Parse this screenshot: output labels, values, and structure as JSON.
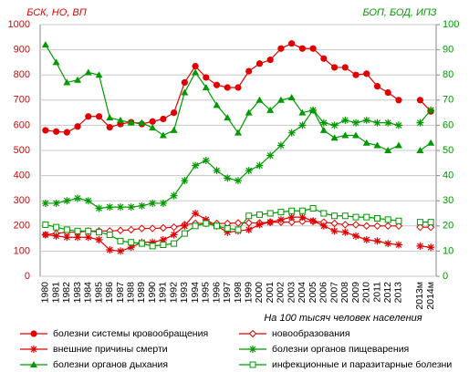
{
  "chart_data": {
    "type": "line",
    "y_label": "БСК, НО, ВП",
    "y2_label": "БОП, БОД, ИПЗ",
    "x_label": "На 100 тысяч человек населения",
    "categories": [
      "1980",
      "1981",
      "1982",
      "1983",
      "1984",
      "1985",
      "1986",
      "1987",
      "1988",
      "1989",
      "1990",
      "1991",
      "1992",
      "1993",
      "1994",
      "1995",
      "1996",
      "1997",
      "1998",
      "1999",
      "2000",
      "2001",
      "2002",
      "2003",
      "2004",
      "2005",
      "2006",
      "2007",
      "2008",
      "2009",
      "2010",
      "2011",
      "2012",
      "2013",
      null,
      "2013м",
      "2014м"
    ],
    "ylim": [
      0,
      1000
    ],
    "yticks": [
      0,
      100,
      200,
      300,
      400,
      500,
      600,
      700,
      800,
      900,
      1000
    ],
    "y2lim": [
      0,
      100
    ],
    "y2ticks": [
      0,
      10,
      20,
      30,
      40,
      50,
      60,
      70,
      80,
      90,
      100
    ],
    "grid": true,
    "series": [
      {
        "name": "болезни системы кровообращения",
        "color": "#e00000",
        "marker": "circle",
        "values": [
          580,
          575,
          572,
          595,
          635,
          635,
          592,
          605,
          612,
          605,
          615,
          625,
          650,
          770,
          835,
          790,
          760,
          750,
          750,
          815,
          845,
          860,
          905,
          925,
          905,
          905,
          865,
          830,
          830,
          800,
          805,
          755,
          730,
          700,
          null,
          700,
          655
        ]
      },
      {
        "name": "новообразования",
        "color": "#e00000",
        "marker": "diamond",
        "values": [
          165,
          170,
          175,
          175,
          180,
          180,
          180,
          182,
          185,
          190,
          190,
          192,
          195,
          205,
          210,
          210,
          210,
          210,
          212,
          212,
          212,
          215,
          215,
          215,
          218,
          218,
          215,
          210,
          205,
          205,
          200,
          200,
          200,
          200,
          null,
          195,
          195
        ]
      },
      {
        "name": "внешние причины смерти",
        "color": "#e00000",
        "marker": "asterisk",
        "values": [
          165,
          160,
          155,
          155,
          155,
          145,
          105,
          100,
          115,
          135,
          135,
          145,
          165,
          200,
          250,
          225,
          200,
          175,
          180,
          185,
          205,
          215,
          225,
          235,
          235,
          220,
          200,
          180,
          175,
          160,
          145,
          140,
          130,
          125,
          null,
          120,
          115
        ]
      },
      {
        "name": "болезни органов пищеварения",
        "color": "#009900",
        "marker": "asterisk",
        "axis": "y2",
        "values": [
          29,
          29,
          30,
          31,
          30,
          27,
          27.5,
          27.5,
          27.5,
          28,
          29,
          29,
          32,
          38,
          44,
          46,
          42,
          39,
          38,
          42,
          44,
          48,
          52,
          57,
          60,
          66,
          61,
          60,
          62,
          61,
          62,
          61,
          61,
          60,
          null,
          61,
          66
        ]
      },
      {
        "name": "болезни органов дыхания",
        "color": "#009900",
        "marker": "triangle",
        "axis": "y2",
        "values": [
          92,
          85,
          77,
          78,
          81,
          80,
          63,
          62,
          61,
          61,
          59,
          56,
          58,
          73,
          81,
          75,
          68,
          63,
          57,
          65,
          70,
          66,
          70,
          71,
          65,
          66,
          58,
          55,
          56,
          56,
          53,
          52,
          50,
          52,
          null,
          50,
          53
        ]
      },
      {
        "name": "инфекционные  и паразитарные болезни",
        "color": "#009900",
        "marker": "square",
        "axis": "y2",
        "values": [
          20.5,
          19.5,
          18.5,
          18,
          18,
          17.5,
          16.5,
          14,
          13.5,
          13,
          12,
          12.5,
          13,
          17,
          20,
          21,
          20,
          19,
          18.5,
          24,
          24.5,
          25,
          25.5,
          26,
          26,
          27,
          25,
          24,
          24,
          23.5,
          23.5,
          23,
          22.5,
          22,
          null,
          21.5,
          21.5
        ]
      }
    ]
  }
}
